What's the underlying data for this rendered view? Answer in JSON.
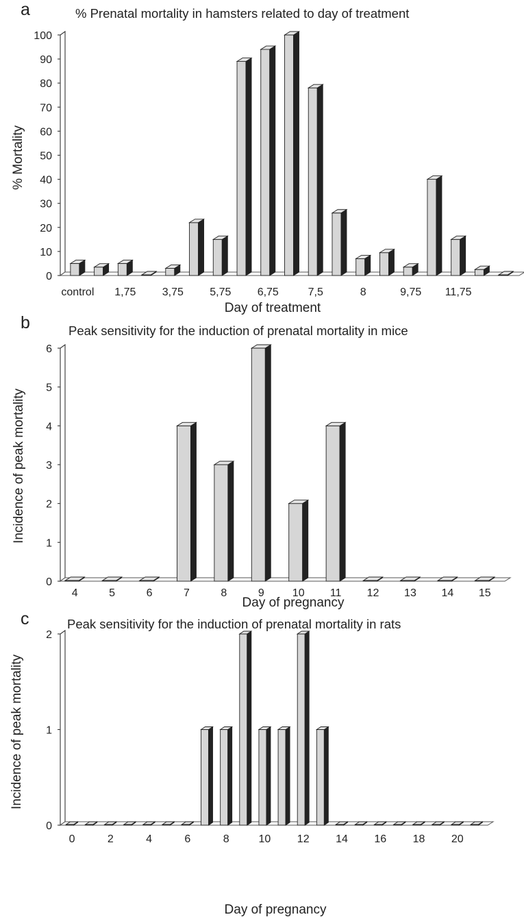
{
  "chart_data": [
    {
      "panel": "a",
      "type": "bar",
      "title": "% Prenatal mortality in hamsters related to day of  treatment",
      "xlabel": "Day of treatment",
      "ylabel": "% Mortality",
      "ylim": [
        0,
        100
      ],
      "yticks": [
        0,
        10,
        20,
        30,
        40,
        50,
        60,
        70,
        80,
        90,
        100
      ],
      "categories": [
        "control",
        "",
        "1,75",
        "",
        "3,75",
        "",
        "5,75",
        "",
        "6,75",
        "",
        "7,5",
        "",
        "8",
        "",
        "9,75",
        "",
        "11,75",
        "",
        ""
      ],
      "values": [
        5,
        3.5,
        5,
        0,
        3,
        22,
        15,
        89,
        94,
        100,
        78,
        26,
        7,
        9.5,
        3.5,
        40,
        15,
        2.5,
        0
      ],
      "grid": false,
      "legend": "none"
    },
    {
      "panel": "b",
      "type": "bar",
      "title": "Peak sensitivity  for the induction of prenatal mortality in mice",
      "xlabel": "Day of pregnancy",
      "ylabel": "Incidence of peak mortality",
      "ylim": [
        0,
        6
      ],
      "yticks": [
        0,
        1,
        2,
        3,
        4,
        5,
        6
      ],
      "categories": [
        "4",
        "5",
        "6",
        "7",
        "8",
        "9",
        "10",
        "11",
        "12",
        "13",
        "14",
        "15"
      ],
      "values": [
        0,
        0,
        0,
        4,
        3,
        6,
        2,
        4,
        0,
        0,
        0,
        0
      ],
      "grid": false,
      "legend": "none"
    },
    {
      "panel": "c",
      "type": "bar",
      "title": "Peak sensitivity  for the induction of prenatal mortality in rats",
      "xlabel": "Day of pregnancy",
      "ylabel": "Incidence of peak mortality",
      "ylim": [
        0,
        2
      ],
      "yticks": [
        0,
        1,
        2
      ],
      "categories": [
        "0",
        "",
        "2",
        "",
        "4",
        "",
        "6",
        "",
        "8",
        "",
        "10",
        "",
        "12",
        "",
        "14",
        "",
        "16",
        "",
        "18",
        "",
        "20",
        ""
      ],
      "values": [
        0,
        0,
        0,
        0,
        0,
        0,
        0,
        1,
        1,
        2,
        1,
        1,
        2,
        1,
        0,
        0,
        0,
        0,
        0,
        0,
        0,
        0
      ],
      "grid": false,
      "legend": "none"
    }
  ]
}
